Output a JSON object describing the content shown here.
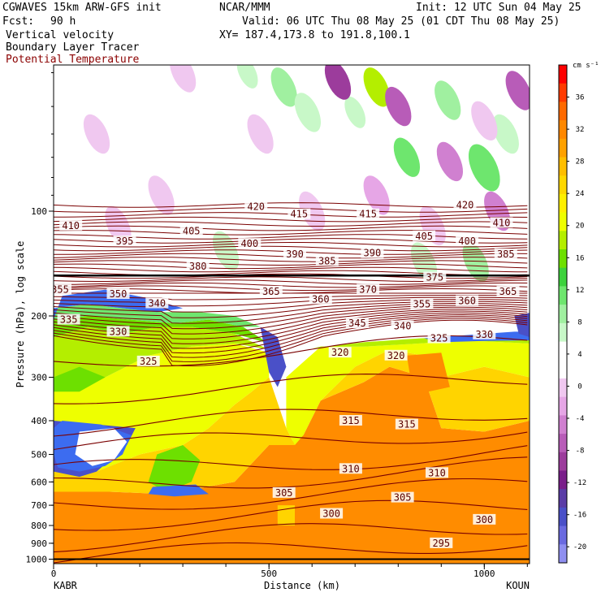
{
  "header": {
    "model": "CGWAVES 15km ARW-GFS init",
    "fcst_label": "Fcst:",
    "fcst_value": "90 h",
    "field1": "Vertical velocity",
    "field2": "Boundary Layer Tracer",
    "field3": "Potential Temperature",
    "center": "NCAR/MMM",
    "init": "Init: 12 UTC Sun 04 May 25",
    "valid": "Valid: 06 UTC Thu 08 May 25 (01 CDT Thu 08 May 25)",
    "xy": "XY= 187.4,173.8 to 191.8,100.1",
    "field3_color": "#8b0000"
  },
  "chart_data": {
    "type": "heatmap",
    "xlabel": "Distance (km)",
    "ylabel": "Pressure (hPa), log scale",
    "x_range": [
      0,
      1105
    ],
    "y_range_hPa": [
      1030,
      38
    ],
    "y_scale": "log",
    "x_ticks": [
      "0",
      "500",
      "1000"
    ],
    "x_tick_values": [
      0,
      500,
      1000
    ],
    "y_ticks": [
      "100",
      "200",
      "300",
      "400",
      "500",
      "600",
      "700",
      "800",
      "900",
      "1000"
    ],
    "y_tick_values": [
      100,
      200,
      300,
      400,
      500,
      600,
      700,
      800,
      900,
      1000
    ],
    "x_endpoints": [
      "KABR",
      "KOUN"
    ],
    "colorbar": {
      "unit": "cm s⁻¹",
      "labels": [
        "36",
        "32",
        "28",
        "24",
        "20",
        "16",
        "12",
        "8",
        "4",
        "0",
        "-4",
        "-8",
        "-12",
        "-16",
        "-20"
      ],
      "label_values": [
        36,
        32,
        28,
        24,
        20,
        16,
        12,
        8,
        4,
        0,
        -4,
        -8,
        -12,
        -16,
        -20
      ],
      "colors": [
        "#ff0000",
        "#ff3b00",
        "#ff6a00",
        "#ff8800",
        "#ffa100",
        "#ffbe00",
        "#ffd800",
        "#fff000",
        "#eeff00",
        "#b4ee00",
        "#6de000",
        "#3cd23c",
        "#6ee66e",
        "#a0f0a0",
        "#c8f8c8",
        "#ffffff",
        "#ffffff",
        "#f0c8f0",
        "#e6a6e6",
        "#d080d0",
        "#b85cb8",
        "#9c3c9c",
        "#7a1e8a",
        "#5a3ca6",
        "#4a50c8",
        "#6a6ae0",
        "#8f8ff0"
      ],
      "range": [
        -22,
        40
      ]
    },
    "theta_labels": [
      {
        "text": "410",
        "x": 40,
        "p": 110
      },
      {
        "text": "420",
        "x": 470,
        "p": 97
      },
      {
        "text": "415",
        "x": 570,
        "p": 102
      },
      {
        "text": "415",
        "x": 730,
        "p": 102
      },
      {
        "text": "420",
        "x": 955,
        "p": 96
      },
      {
        "text": "410",
        "x": 1040,
        "p": 108
      },
      {
        "text": "395",
        "x": 165,
        "p": 122
      },
      {
        "text": "405",
        "x": 320,
        "p": 114
      },
      {
        "text": "400",
        "x": 455,
        "p": 124
      },
      {
        "text": "405",
        "x": 860,
        "p": 118
      },
      {
        "text": "400",
        "x": 960,
        "p": 122
      },
      {
        "text": "390",
        "x": 560,
        "p": 133
      },
      {
        "text": "390",
        "x": 740,
        "p": 132
      },
      {
        "text": "385",
        "x": 635,
        "p": 139
      },
      {
        "text": "385",
        "x": 1050,
        "p": 133
      },
      {
        "text": "380",
        "x": 335,
        "p": 144
      },
      {
        "text": "375",
        "x": 885,
        "p": 155
      },
      {
        "text": "365",
        "x": 505,
        "p": 170
      },
      {
        "text": "370",
        "x": 730,
        "p": 168
      },
      {
        "text": "360",
        "x": 620,
        "p": 179
      },
      {
        "text": "355",
        "x": 855,
        "p": 185
      },
      {
        "text": "360",
        "x": 960,
        "p": 181
      },
      {
        "text": "365",
        "x": 1055,
        "p": 170
      },
      {
        "text": "355",
        "x": 15,
        "p": 168
      },
      {
        "text": "350",
        "x": 150,
        "p": 173
      },
      {
        "text": "340",
        "x": 240,
        "p": 184
      },
      {
        "text": "345",
        "x": 705,
        "p": 210
      },
      {
        "text": "340",
        "x": 810,
        "p": 214
      },
      {
        "text": "325",
        "x": 895,
        "p": 232
      },
      {
        "text": "330",
        "x": 1000,
        "p": 226
      },
      {
        "text": "335",
        "x": 35,
        "p": 205
      },
      {
        "text": "330",
        "x": 150,
        "p": 222
      },
      {
        "text": "325",
        "x": 220,
        "p": 270
      },
      {
        "text": "320",
        "x": 665,
        "p": 255
      },
      {
        "text": "320",
        "x": 795,
        "p": 260
      },
      {
        "text": "315",
        "x": 690,
        "p": 400
      },
      {
        "text": "315",
        "x": 820,
        "p": 410
      },
      {
        "text": "310",
        "x": 690,
        "p": 550
      },
      {
        "text": "310",
        "x": 890,
        "p": 565
      },
      {
        "text": "305",
        "x": 535,
        "p": 645
      },
      {
        "text": "305",
        "x": 810,
        "p": 665
      },
      {
        "text": "300",
        "x": 645,
        "p": 740
      },
      {
        "text": "300",
        "x": 1000,
        "p": 770
      },
      {
        "text": "295",
        "x": 900,
        "p": 900
      }
    ]
  }
}
